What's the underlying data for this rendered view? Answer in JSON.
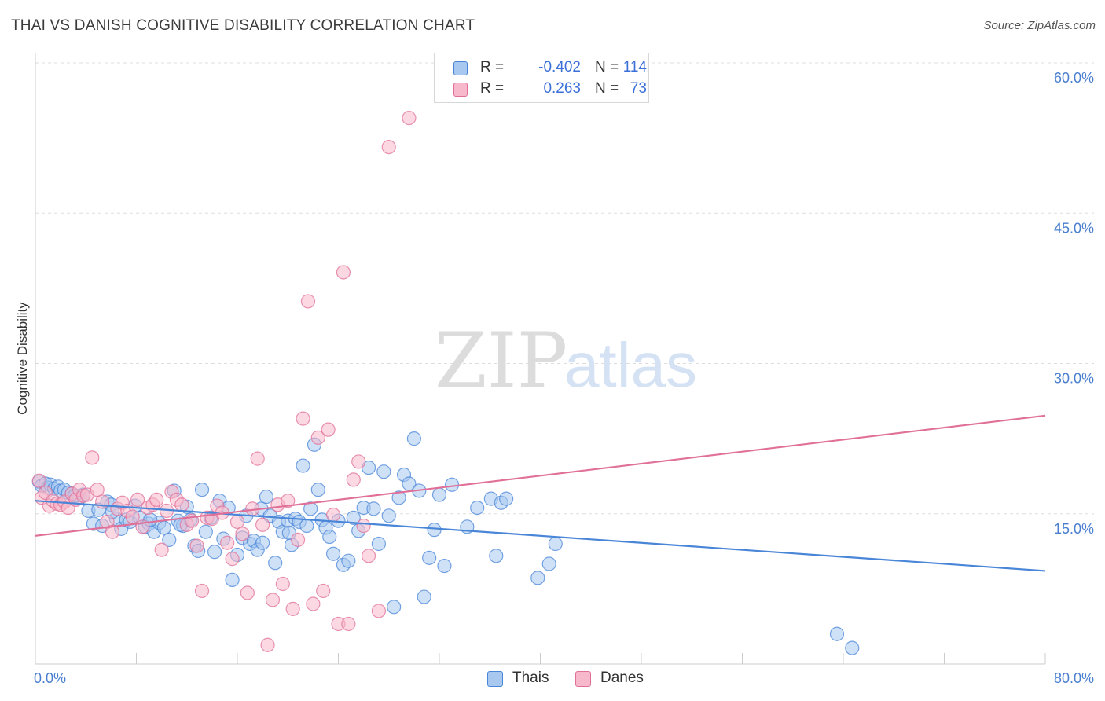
{
  "header": {
    "title": "THAI VS DANISH COGNITIVE DISABILITY CORRELATION CHART",
    "source": "Source: ZipAtlas.com"
  },
  "watermark": {
    "part1": "ZIP",
    "part2": "atlas"
  },
  "legend": {
    "rows": [
      {
        "r_label": "R =",
        "r_value": "-0.402",
        "n_label": "N =",
        "n_value": "114",
        "color": "#a8c8f0"
      },
      {
        "r_label": "R =",
        "r_value": "0.263",
        "n_label": "N =",
        "n_value": "73",
        "color": "#f7b8cb"
      }
    ]
  },
  "bottom_legend": [
    {
      "label": "Thais",
      "color": "#a8c8f0"
    },
    {
      "label": "Danes",
      "color": "#f7b8cb"
    }
  ],
  "chart_data": {
    "type": "scatter",
    "title": "THAI VS DANISH COGNITIVE DISABILITY CORRELATION CHART",
    "xlabel": "",
    "ylabel": "Cognitive Disability",
    "xlim": [
      0,
      80
    ],
    "ylim": [
      0,
      60
    ],
    "x_tick_labels": [
      "0.0%",
      "80.0%"
    ],
    "y_ticks": [
      15,
      30,
      45,
      60
    ],
    "y_tick_labels": [
      "15.0%",
      "30.0%",
      "45.0%",
      "60.0%"
    ],
    "grid": true,
    "legend_position": "top-center",
    "colors": {
      "thais": "#4a86d8",
      "danes": "#e07098",
      "thais_fill": "#a8c8f0",
      "danes_fill": "#f7b8cb"
    },
    "series": [
      {
        "name": "Thais",
        "trend": {
          "x": [
            0,
            80
          ],
          "y": [
            16.3,
            9.3
          ]
        },
        "points": [
          [
            0.3,
            18.2
          ],
          [
            0.5,
            17.8
          ],
          [
            0.8,
            18.0
          ],
          [
            1.0,
            17.6
          ],
          [
            1.2,
            17.9
          ],
          [
            1.5,
            17.5
          ],
          [
            1.8,
            17.7
          ],
          [
            2.0,
            17.3
          ],
          [
            2.3,
            17.4
          ],
          [
            2.6,
            17.1
          ],
          [
            2.9,
            17.0
          ],
          [
            3.2,
            16.8
          ],
          [
            3.5,
            16.6
          ],
          [
            3.8,
            16.9
          ],
          [
            4.2,
            15.3
          ],
          [
            4.6,
            14.0
          ],
          [
            5.0,
            15.4
          ],
          [
            5.3,
            13.8
          ],
          [
            5.7,
            16.2
          ],
          [
            6.0,
            15.9
          ],
          [
            6.4,
            14.5
          ],
          [
            6.8,
            13.5
          ],
          [
            7.2,
            14.4
          ],
          [
            7.5,
            14.2
          ],
          [
            7.9,
            15.8
          ],
          [
            8.3,
            14.6
          ],
          [
            8.7,
            13.7
          ],
          [
            9.0,
            14.0
          ],
          [
            9.4,
            13.2
          ],
          [
            9.8,
            14.1
          ],
          [
            10.2,
            13.6
          ],
          [
            10.6,
            12.4
          ],
          [
            11.0,
            17.3
          ],
          [
            11.3,
            14.3
          ],
          [
            11.7,
            13.8
          ],
          [
            12.0,
            15.7
          ],
          [
            12.3,
            14.4
          ],
          [
            12.6,
            11.8
          ],
          [
            12.9,
            11.3
          ],
          [
            13.2,
            17.4
          ],
          [
            13.5,
            13.2
          ],
          [
            13.9,
            14.6
          ],
          [
            14.2,
            11.2
          ],
          [
            14.6,
            16.3
          ],
          [
            14.9,
            12.5
          ],
          [
            15.3,
            15.6
          ],
          [
            15.6,
            8.4
          ],
          [
            16.0,
            10.9
          ],
          [
            16.4,
            12.6
          ],
          [
            16.7,
            14.8
          ],
          [
            17.0,
            12.0
          ],
          [
            17.3,
            12.3
          ],
          [
            17.6,
            11.4
          ],
          [
            17.9,
            15.5
          ],
          [
            18.3,
            16.7
          ],
          [
            18.6,
            14.8
          ],
          [
            19.0,
            10.1
          ],
          [
            19.3,
            14.2
          ],
          [
            19.6,
            13.2
          ],
          [
            20.0,
            14.3
          ],
          [
            20.3,
            11.9
          ],
          [
            20.6,
            14.5
          ],
          [
            20.9,
            14.2
          ],
          [
            21.2,
            19.8
          ],
          [
            21.5,
            13.8
          ],
          [
            21.8,
            15.5
          ],
          [
            22.1,
            21.9
          ],
          [
            22.4,
            17.4
          ],
          [
            22.7,
            14.4
          ],
          [
            23.0,
            13.6
          ],
          [
            23.3,
            12.7
          ],
          [
            23.6,
            11.0
          ],
          [
            24.0,
            14.3
          ],
          [
            24.4,
            9.9
          ],
          [
            24.8,
            10.3
          ],
          [
            25.2,
            14.6
          ],
          [
            25.6,
            13.3
          ],
          [
            26.0,
            15.6
          ],
          [
            26.4,
            19.6
          ],
          [
            26.8,
            15.5
          ],
          [
            27.2,
            12.0
          ],
          [
            27.6,
            19.2
          ],
          [
            28.0,
            14.8
          ],
          [
            28.4,
            5.7
          ],
          [
            28.8,
            16.6
          ],
          [
            29.2,
            18.9
          ],
          [
            29.6,
            18.0
          ],
          [
            30.0,
            22.5
          ],
          [
            30.4,
            17.3
          ],
          [
            30.8,
            6.7
          ],
          [
            31.2,
            10.6
          ],
          [
            31.6,
            13.4
          ],
          [
            32.0,
            16.9
          ],
          [
            32.4,
            9.8
          ],
          [
            33.0,
            17.9
          ],
          [
            34.2,
            13.7
          ],
          [
            35.0,
            15.6
          ],
          [
            36.1,
            16.5
          ],
          [
            36.5,
            10.8
          ],
          [
            36.9,
            16.1
          ],
          [
            37.3,
            16.5
          ],
          [
            39.8,
            8.6
          ],
          [
            40.7,
            10.0
          ],
          [
            41.2,
            12.0
          ],
          [
            63.5,
            3.0
          ],
          [
            64.7,
            1.6
          ],
          [
            6.1,
            15.2
          ],
          [
            9.1,
            14.4
          ],
          [
            3.1,
            16.8
          ],
          [
            20.1,
            13.1
          ],
          [
            18.0,
            12.1
          ],
          [
            11.5,
            13.9
          ]
        ]
      },
      {
        "name": "Danes",
        "trend": {
          "x": [
            0,
            80
          ],
          "y": [
            12.8,
            24.8
          ]
        },
        "points": [
          [
            0.3,
            18.3
          ],
          [
            0.5,
            16.6
          ],
          [
            0.8,
            17.1
          ],
          [
            1.1,
            15.8
          ],
          [
            1.4,
            16.3
          ],
          [
            1.7,
            16.0
          ],
          [
            2.0,
            15.9
          ],
          [
            2.3,
            16.2
          ],
          [
            2.6,
            15.6
          ],
          [
            2.9,
            17.0
          ],
          [
            3.2,
            16.4
          ],
          [
            3.5,
            17.4
          ],
          [
            3.8,
            16.8
          ],
          [
            4.1,
            16.9
          ],
          [
            4.5,
            20.6
          ],
          [
            4.9,
            17.4
          ],
          [
            5.3,
            16.2
          ],
          [
            5.7,
            14.2
          ],
          [
            6.1,
            13.2
          ],
          [
            6.5,
            15.5
          ],
          [
            6.9,
            16.1
          ],
          [
            7.3,
            15.3
          ],
          [
            7.7,
            14.7
          ],
          [
            8.1,
            16.4
          ],
          [
            8.5,
            13.7
          ],
          [
            8.9,
            15.6
          ],
          [
            9.3,
            15.9
          ],
          [
            9.6,
            16.4
          ],
          [
            10.0,
            11.4
          ],
          [
            10.4,
            15.3
          ],
          [
            10.8,
            17.2
          ],
          [
            11.2,
            16.4
          ],
          [
            11.6,
            15.9
          ],
          [
            12.0,
            13.9
          ],
          [
            12.4,
            14.3
          ],
          [
            12.8,
            11.8
          ],
          [
            13.2,
            7.3
          ],
          [
            13.6,
            14.6
          ],
          [
            14.0,
            14.5
          ],
          [
            14.4,
            15.8
          ],
          [
            14.8,
            15.1
          ],
          [
            15.2,
            12.1
          ],
          [
            15.6,
            10.5
          ],
          [
            16.0,
            14.2
          ],
          [
            16.4,
            13.0
          ],
          [
            16.8,
            7.1
          ],
          [
            17.2,
            15.5
          ],
          [
            17.6,
            20.5
          ],
          [
            18.0,
            13.9
          ],
          [
            18.4,
            1.9
          ],
          [
            18.8,
            6.4
          ],
          [
            19.2,
            15.9
          ],
          [
            19.6,
            8.0
          ],
          [
            20.0,
            16.3
          ],
          [
            20.4,
            5.5
          ],
          [
            20.8,
            12.4
          ],
          [
            21.2,
            24.5
          ],
          [
            21.6,
            36.2
          ],
          [
            22.0,
            6.0
          ],
          [
            22.4,
            22.6
          ],
          [
            22.8,
            7.3
          ],
          [
            23.2,
            23.4
          ],
          [
            23.6,
            14.9
          ],
          [
            24.0,
            4.0
          ],
          [
            24.4,
            39.1
          ],
          [
            24.8,
            4.0
          ],
          [
            25.2,
            18.4
          ],
          [
            25.6,
            20.2
          ],
          [
            26.0,
            13.8
          ],
          [
            26.4,
            10.8
          ],
          [
            27.2,
            5.3
          ],
          [
            28.0,
            51.6
          ],
          [
            29.6,
            54.5
          ]
        ]
      }
    ]
  }
}
